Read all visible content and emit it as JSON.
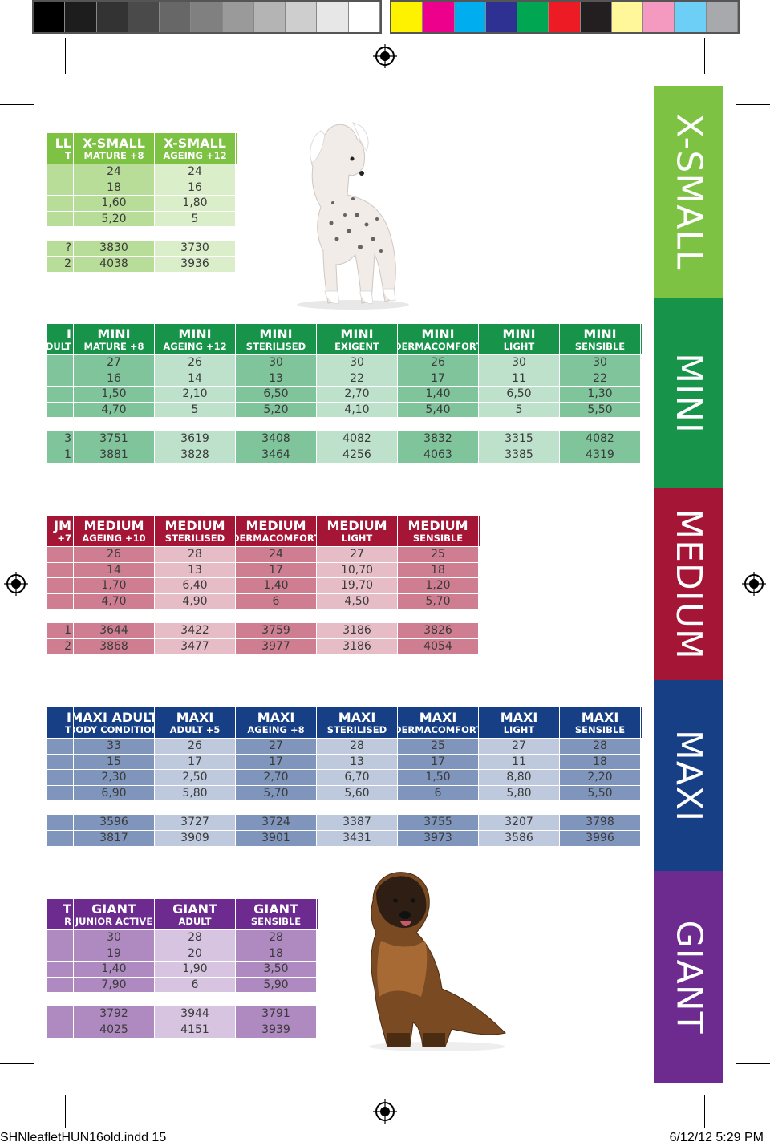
{
  "colors": {
    "xsmall": "#7dc243",
    "mini": "#17934a",
    "medium": "#a51536",
    "maxi": "#163f86",
    "giant": "#6d2b8f"
  },
  "colorbar": {
    "grays": [
      "#000000",
      "#1d1d1d",
      "#333333",
      "#4a4a4a",
      "#676767",
      "#808080",
      "#9a9a9a",
      "#b4b4b4",
      "#cecece",
      "#e7e7e7",
      "#ffffff"
    ],
    "colors": [
      "#fff200",
      "#ec008c",
      "#00aeef",
      "#2e3192",
      "#00a651",
      "#ed1c24",
      "#231f20",
      "#fff799",
      "#f49ac1",
      "#6dcff6",
      "#a7a9ac"
    ]
  },
  "side_tabs": [
    "X-SMALL",
    "MINI",
    "MEDIUM",
    "MAXI",
    "GIANT"
  ],
  "footer": {
    "left": "SHNleafletHUN16old.indd   15",
    "right": "6/12/12   5:29 PM"
  },
  "images": {
    "dog_top": "chinese-crested-dog-photo",
    "dog_bottom": "leonberger-dog-photo"
  },
  "tables": {
    "xsmall": {
      "first": {
        "name": "LL",
        "sub": "T",
        "cells": [
          "",
          "",
          "",
          "",
          "?",
          "2"
        ]
      },
      "headers": [
        {
          "name": "X-SMALL",
          "sub": "MATURE +8"
        },
        {
          "name": "X-SMALL",
          "sub": "AGEING +12"
        }
      ],
      "rows": [
        [
          "24",
          "24"
        ],
        [
          "18",
          "16"
        ],
        [
          "1,60",
          "1,80"
        ],
        [
          "5,20",
          "5"
        ],
        [
          "3830",
          "3730"
        ],
        [
          "4038",
          "3936"
        ]
      ]
    },
    "mini": {
      "first": {
        "name": "I",
        "sub": "DULT",
        "cells": [
          "",
          "",
          "",
          "",
          "3",
          "1"
        ]
      },
      "headers": [
        {
          "name": "MINI",
          "sub": "MATURE +8"
        },
        {
          "name": "MINI",
          "sub": "AGEING +12"
        },
        {
          "name": "MINI",
          "sub": "STERILISED"
        },
        {
          "name": "MINI",
          "sub": "EXIGENT"
        },
        {
          "name": "MINI",
          "sub": "DERMACOMFORT"
        },
        {
          "name": "MINI",
          "sub": "LIGHT"
        },
        {
          "name": "MINI",
          "sub": "SENSIBLE"
        }
      ],
      "rows": [
        [
          "27",
          "26",
          "30",
          "30",
          "26",
          "30",
          "30"
        ],
        [
          "16",
          "14",
          "13",
          "22",
          "17",
          "11",
          "22"
        ],
        [
          "1,50",
          "2,10",
          "6,50",
          "2,70",
          "1,40",
          "6,50",
          "1,30"
        ],
        [
          "4,70",
          "5",
          "5,20",
          "4,10",
          "5,40",
          "5",
          "5,50"
        ],
        [
          "3751",
          "3619",
          "3408",
          "4082",
          "3832",
          "3315",
          "4082"
        ],
        [
          "3881",
          "3828",
          "3464",
          "4256",
          "4063",
          "3385",
          "4319"
        ]
      ]
    },
    "medium": {
      "first": {
        "name": "JM",
        "sub": "+7",
        "cells": [
          "",
          "",
          "",
          "",
          "1",
          "2"
        ]
      },
      "headers": [
        {
          "name": "MEDIUM",
          "sub": "AGEING +10"
        },
        {
          "name": "MEDIUM",
          "sub": "STERILISED"
        },
        {
          "name": "MEDIUM",
          "sub": "DERMACOMFORT"
        },
        {
          "name": "MEDIUM",
          "sub": "LIGHT"
        },
        {
          "name": "MEDIUM",
          "sub": "SENSIBLE"
        }
      ],
      "rows": [
        [
          "26",
          "28",
          "24",
          "27",
          "25"
        ],
        [
          "14",
          "13",
          "17",
          "10,70",
          "18"
        ],
        [
          "1,70",
          "6,40",
          "1,40",
          "19,70",
          "1,20"
        ],
        [
          "4,70",
          "4,90",
          "6",
          "4,50",
          "5,70"
        ],
        [
          "3644",
          "3422",
          "3759",
          "3186",
          "3826"
        ],
        [
          "3868",
          "3477",
          "3977",
          "3186",
          "4054"
        ]
      ]
    },
    "maxi": {
      "first": {
        "name": "I",
        "sub": "T",
        "cells": [
          "",
          "",
          "",
          "",
          "",
          ""
        ]
      },
      "headers": [
        {
          "name": "MAXI ADULT",
          "sub": "BODY CONDITION"
        },
        {
          "name": "MAXI",
          "sub": "ADULT +5"
        },
        {
          "name": "MAXI",
          "sub": "AGEING +8"
        },
        {
          "name": "MAXI",
          "sub": "STERILISED"
        },
        {
          "name": "MAXI",
          "sub": "DERMACOMFORT"
        },
        {
          "name": "MAXI",
          "sub": "LIGHT"
        },
        {
          "name": "MAXI",
          "sub": "SENSIBLE"
        }
      ],
      "rows": [
        [
          "33",
          "26",
          "27",
          "28",
          "25",
          "27",
          "28"
        ],
        [
          "15",
          "17",
          "17",
          "13",
          "17",
          "11",
          "18"
        ],
        [
          "2,30",
          "2,50",
          "2,70",
          "6,70",
          "1,50",
          "8,80",
          "2,20"
        ],
        [
          "6,90",
          "5,80",
          "5,70",
          "5,60",
          "6",
          "5,80",
          "5,50"
        ],
        [
          "3596",
          "3727",
          "3724",
          "3387",
          "3755",
          "3207",
          "3798"
        ],
        [
          "3817",
          "3909",
          "3901",
          "3431",
          "3973",
          "3586",
          "3996"
        ]
      ]
    },
    "giant": {
      "first": {
        "name": "T",
        "sub": "R",
        "cells": [
          "",
          "",
          "",
          "",
          "",
          ""
        ]
      },
      "headers": [
        {
          "name": "GIANT",
          "sub": "JUNIOR ACTIVE"
        },
        {
          "name": "GIANT",
          "sub": "ADULT"
        },
        {
          "name": "GIANT",
          "sub": "SENSIBLE"
        }
      ],
      "rows": [
        [
          "30",
          "28",
          "28"
        ],
        [
          "19",
          "20",
          "18"
        ],
        [
          "1,40",
          "1,90",
          "3,50"
        ],
        [
          "7,90",
          "6",
          "5,90"
        ],
        [
          "3792",
          "3944",
          "3791"
        ],
        [
          "4025",
          "4151",
          "3939"
        ]
      ]
    }
  }
}
